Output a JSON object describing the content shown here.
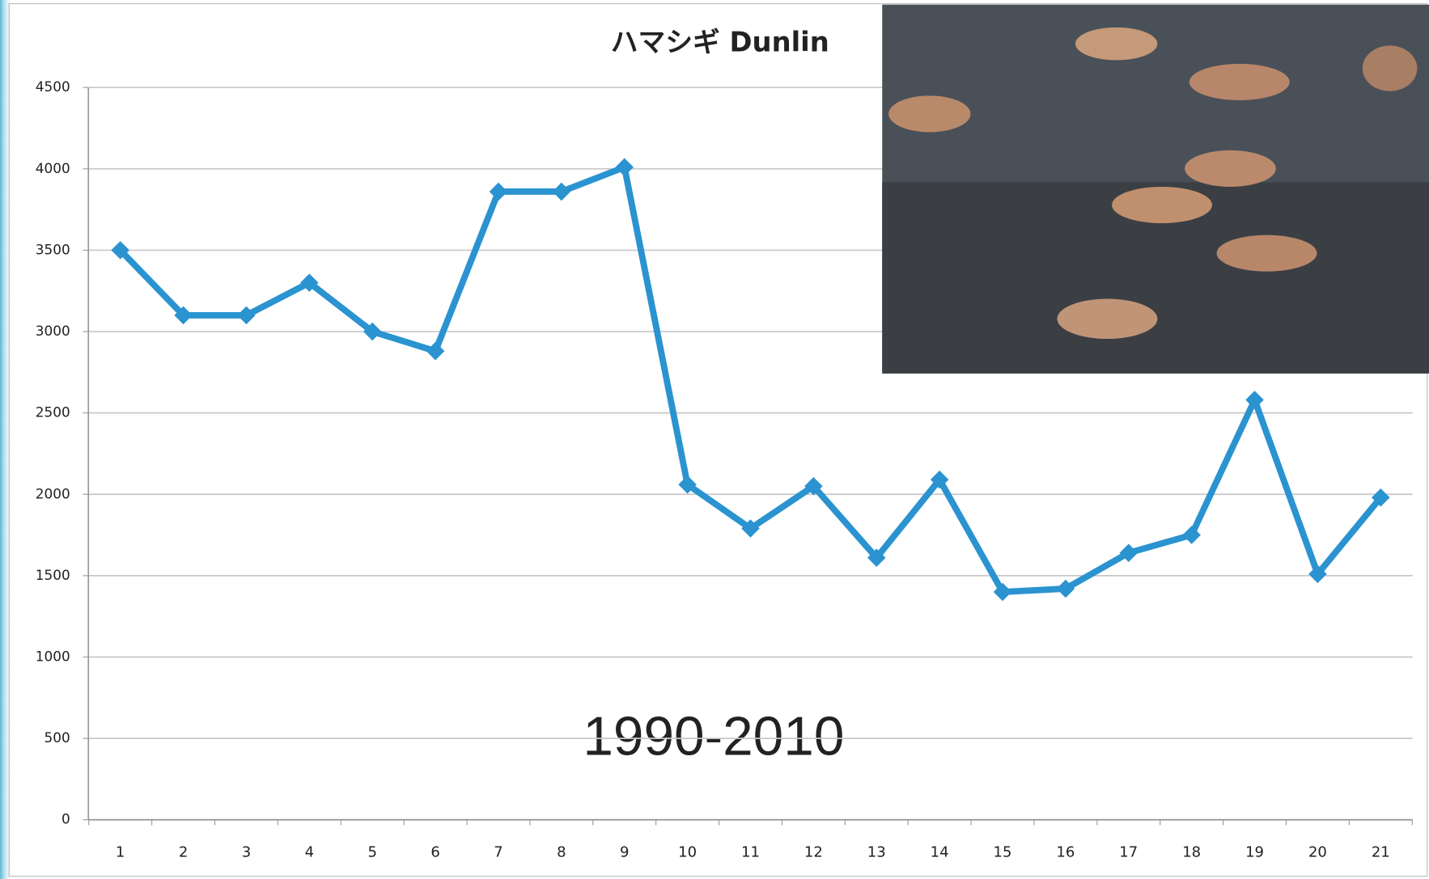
{
  "chart_data": {
    "type": "line",
    "title": "ハマシギ Dunlin",
    "annotation": "1990-2010",
    "categories": [
      "1",
      "2",
      "3",
      "4",
      "5",
      "6",
      "7",
      "8",
      "9",
      "10",
      "11",
      "12",
      "13",
      "14",
      "15",
      "16",
      "17",
      "18",
      "19",
      "20",
      "21"
    ],
    "values": [
      3500,
      3100,
      3100,
      3300,
      3000,
      2880,
      3860,
      3860,
      4010,
      2060,
      1790,
      2050,
      1610,
      2090,
      1400,
      1420,
      1640,
      1750,
      2580,
      1510,
      1980
    ],
    "color": "#2a93d0",
    "ylim": [
      0,
      4500
    ],
    "yticks": [
      0,
      500,
      1000,
      1500,
      2000,
      2500,
      3000,
      3500,
      4000,
      4500
    ],
    "grid": true
  }
}
